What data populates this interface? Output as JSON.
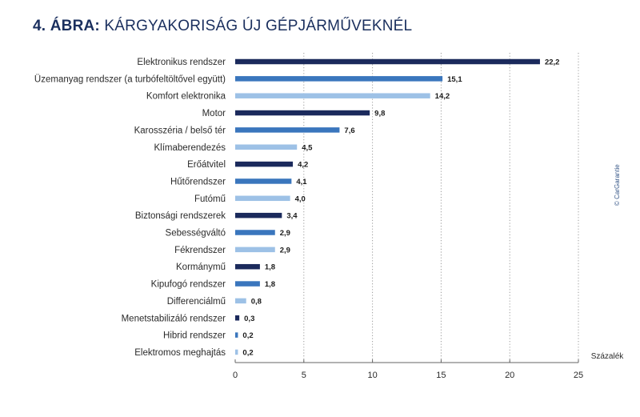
{
  "title": {
    "lead": "4. ÁBRA:",
    "rest": " KÁRGYAKORISÁG ÚJ GÉPJÁRMŰVEKNÉL"
  },
  "credit": "© CarGarantie",
  "colors": {
    "dark": "#1b2a5c",
    "mid": "#3a76bd",
    "light": "#9dc1e6",
    "axis": "#666666",
    "title": "#1a2f5e"
  },
  "chart_data": {
    "type": "bar",
    "orientation": "horizontal",
    "title": "4. ÁBRA: KÁRGYAKORISÁG ÚJ GÉPJÁRMŰVEKNÉL",
    "xlabel": "Százalék",
    "xlim": [
      0,
      25
    ],
    "xticks": [
      0,
      5,
      10,
      15,
      20,
      25
    ],
    "xtick_labels": [
      "0",
      "5",
      "10",
      "15",
      "20",
      "25"
    ],
    "categories": [
      "Elektronikus rendszer",
      "Üzemanyag rendszer (a turbófeltöltővel együtt)",
      "Komfort elektronika",
      "Motor",
      "Karosszéria / belső tér",
      "Klímaberendezés",
      "Erőátvitel",
      "Hűtőrendszer",
      "Futómű",
      "Biztonsági rendszerek",
      "Sebességváltó",
      "Fékrendszer",
      "Kormánymű",
      "Kipufogó rendszer",
      "Differenciálmű",
      "Menetstabilizáló rendszer",
      "Hibrid rendszer",
      "Elektromos meghajtás"
    ],
    "values": [
      22.2,
      15.1,
      14.2,
      9.8,
      7.6,
      4.5,
      4.2,
      4.1,
      4.0,
      3.4,
      2.9,
      2.9,
      1.8,
      1.8,
      0.8,
      0.3,
      0.2,
      0.2
    ],
    "value_labels": [
      "22,2",
      "15,1",
      "14,2",
      "9,8",
      "7,6",
      "4,5",
      "4,2",
      "4,1",
      "4,0",
      "3,4",
      "2,9",
      "2,9",
      "1,8",
      "1,8",
      "0,8",
      "0,3",
      "0,2",
      "0,2"
    ],
    "bar_colors": [
      "dark",
      "mid",
      "light",
      "dark",
      "mid",
      "light",
      "dark",
      "mid",
      "light",
      "dark",
      "mid",
      "light",
      "dark",
      "mid",
      "light",
      "dark",
      "mid",
      "light"
    ]
  }
}
